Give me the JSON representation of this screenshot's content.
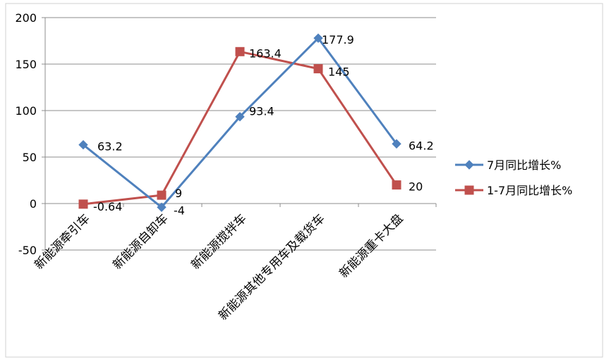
{
  "chart_data": {
    "type": "line",
    "categories": [
      "新能源牵引车",
      "新能源自卸车",
      "新能源搅拌车",
      "新能源其他专用车及载货车",
      "新能源重卡大盘"
    ],
    "series": [
      {
        "name": "7月同比增长%",
        "values": [
          63.2,
          -4,
          93.4,
          177.9,
          64.2
        ],
        "labels": [
          "63.2",
          "-4",
          "93.4",
          "177.9",
          "64.2"
        ],
        "color": "#4F81BD",
        "marker": "diamond"
      },
      {
        "name": "1-7月同比增长%",
        "values": [
          -0.64,
          9,
          163.4,
          145,
          20
        ],
        "labels": [
          "-0.64",
          "9",
          "163.4",
          "145",
          "20"
        ],
        "color": "#C0504D",
        "marker": "square"
      }
    ],
    "y_ticks": [
      "200",
      "150",
      "100",
      "50",
      "0",
      "-50"
    ],
    "ylim": [
      -50,
      200
    ],
    "grid": true,
    "legend_position": "right"
  }
}
